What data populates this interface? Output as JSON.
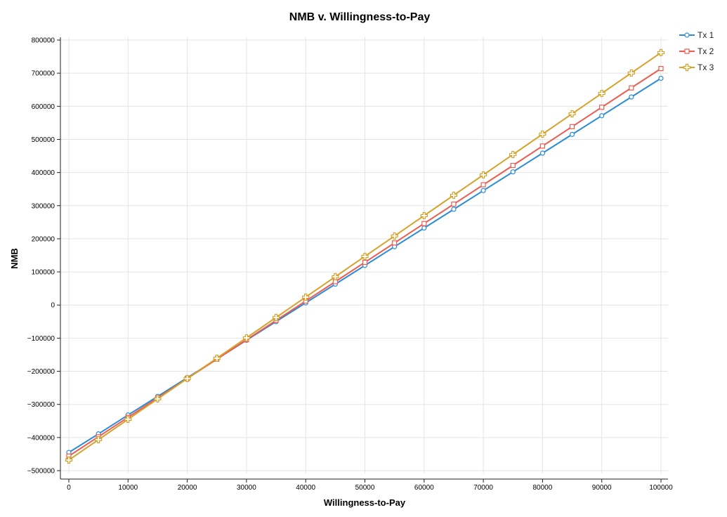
{
  "chart_data": {
    "type": "line",
    "title": "NMB v. Willingness-to-Pay",
    "xlabel": "Willingness-to-Pay",
    "ylabel": "NMB",
    "xlim": [
      0,
      100000
    ],
    "ylim": [
      -500000,
      800000
    ],
    "x_ticks": [
      0,
      10000,
      20000,
      30000,
      40000,
      50000,
      60000,
      70000,
      80000,
      90000,
      100000
    ],
    "y_ticks": [
      -500000,
      -400000,
      -300000,
      -200000,
      -100000,
      0,
      100000,
      200000,
      300000,
      400000,
      500000,
      600000,
      700000,
      800000
    ],
    "grid": true,
    "legend_position": "top-right",
    "x": [
      0,
      5000,
      10000,
      15000,
      20000,
      25000,
      30000,
      35000,
      40000,
      45000,
      50000,
      55000,
      60000,
      65000,
      70000,
      75000,
      80000,
      85000,
      90000,
      95000,
      100000
    ],
    "series": [
      {
        "name": "Tx 1",
        "color": "#2a8bd8",
        "marker": "circle",
        "values": [
          -445000,
          -389000,
          -332000,
          -276000,
          -219500,
          -163000,
          -106500,
          -50000,
          6500,
          63000,
          119500,
          176000,
          232500,
          289000,
          345500,
          402000,
          458500,
          515000,
          571500,
          628000,
          684500
        ]
      },
      {
        "name": "Tx 2",
        "color": "#ef5a4f",
        "marker": "square",
        "values": [
          -456000,
          -397500,
          -339000,
          -280500,
          -222000,
          -163500,
          -105000,
          -46500,
          12000,
          70500,
          129000,
          187500,
          246000,
          304500,
          363000,
          421500,
          480000,
          538500,
          597000,
          655500,
          714000
        ]
      },
      {
        "name": "Tx 3",
        "color": "#d6a22a",
        "marker": "plus",
        "values": [
          -468000,
          -406500,
          -345000,
          -283500,
          -222000,
          -160500,
          -99000,
          -37500,
          24000,
          85500,
          147000,
          208500,
          270000,
          331500,
          393000,
          454500,
          516000,
          577500,
          639000,
          700500,
          762000
        ]
      }
    ]
  }
}
